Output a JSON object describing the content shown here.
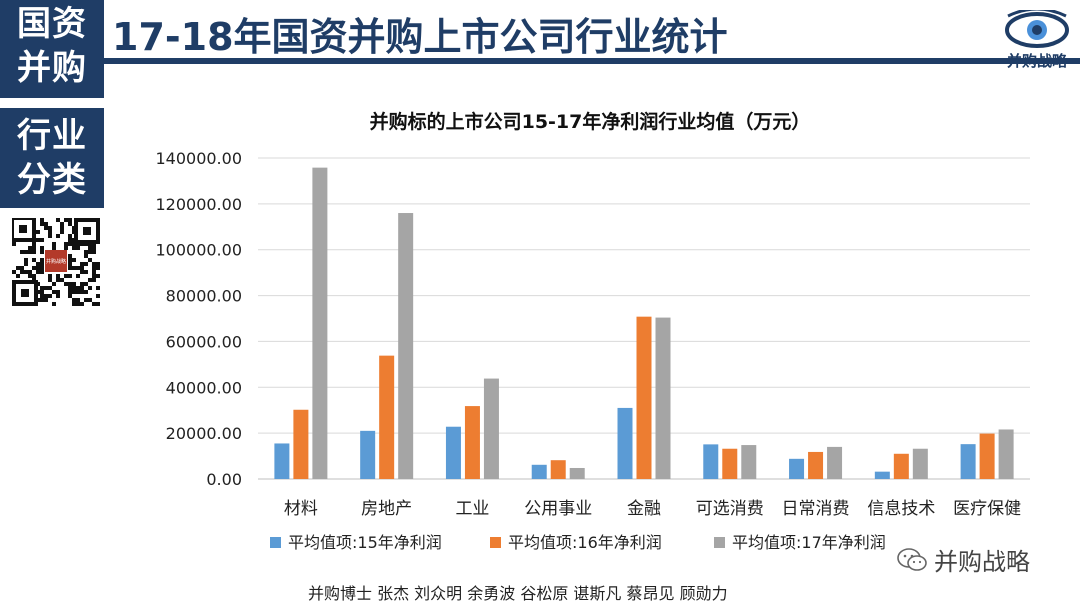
{
  "header": {
    "side_top_line1": "国资",
    "side_top_line2": "并购",
    "side_mid_line1": "行业",
    "side_mid_line2": "分类",
    "title": "17-18年国资并购上市公司行业统计",
    "logo_text": "并购战略"
  },
  "qr": {
    "center_text": "并购战略"
  },
  "chart_data": {
    "type": "bar",
    "title": "并购标的上市公司15-17年净利润行业均值（万元）",
    "categories": [
      "材料",
      "房地产",
      "工业",
      "公用事业",
      "金融",
      "可选消费",
      "日常消费",
      "信息技术",
      "医疗保健"
    ],
    "series": [
      {
        "name": "平均值项:15年净利润",
        "color": "#5b9bd5",
        "values": [
          15500,
          21000,
          22800,
          6200,
          31000,
          15100,
          8800,
          3200,
          15200
        ]
      },
      {
        "name": "平均值项:16年净利润",
        "color": "#ed7d31",
        "values": [
          30200,
          53800,
          31800,
          8200,
          70800,
          13200,
          11800,
          11000,
          19800
        ]
      },
      {
        "name": "平均值项:17年净利润",
        "color": "#a5a5a5",
        "values": [
          135800,
          116000,
          43800,
          4800,
          70400,
          14800,
          14000,
          13200,
          21600
        ]
      }
    ],
    "yticks": [
      "0.00",
      "20000.00",
      "40000.00",
      "60000.00",
      "80000.00",
      "100000.00",
      "120000.00",
      "140000.00"
    ],
    "ylim": [
      0,
      140000
    ],
    "grid": true,
    "legend_position": "bottom"
  },
  "footer": {
    "credits": "并购博士 张杰 刘众明 余勇波 谷松原 谌斯凡 蔡昂见 顾勋力",
    "watermark": "并购战略"
  }
}
